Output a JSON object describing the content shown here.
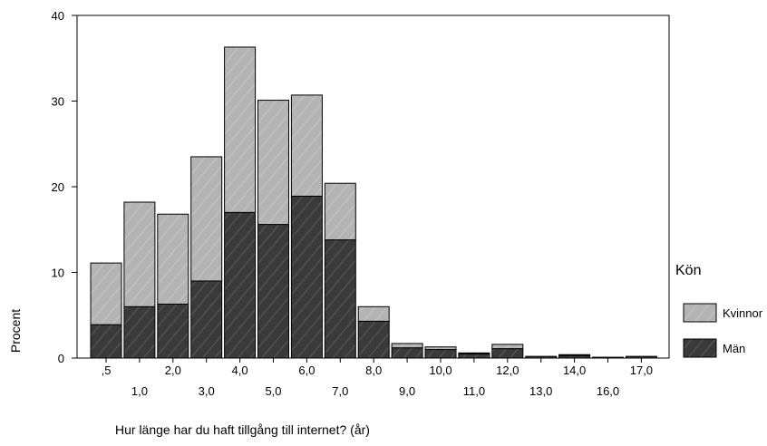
{
  "chart_data": {
    "type": "bar",
    "stacked": true,
    "categories": [
      ",5",
      "1,0",
      "2,0",
      "3,0",
      "4,0",
      "5,0",
      "6,0",
      "7,0",
      "8,0",
      "9,0",
      "10,0",
      "11,0",
      "12,0",
      "13,0",
      "14,0",
      "16,0",
      "17,0"
    ],
    "series": [
      {
        "name": "Män",
        "color": "#3a3a3a",
        "values": [
          3.9,
          6.0,
          6.3,
          9.0,
          17.0,
          15.6,
          18.9,
          13.8,
          4.3,
          1.2,
          1.0,
          0.5,
          1.1,
          0.2,
          0.3,
          0.1,
          0.2
        ]
      },
      {
        "name": "Kvinnor",
        "color": "#b4b4b4",
        "values": [
          7.2,
          12.2,
          10.5,
          14.5,
          19.3,
          14.5,
          11.8,
          6.6,
          1.7,
          0.5,
          0.3,
          0.1,
          0.5,
          0.0,
          0.1,
          0.0,
          0.0
        ]
      }
    ],
    "xlabel": "Hur länge har du haft tillgång till internet? (år)",
    "ylabel": "Procent",
    "ylim": [
      0,
      40
    ],
    "yticks": [
      0,
      10,
      20,
      30,
      40
    ],
    "legend": {
      "title": "Kön",
      "placement": "right",
      "entries": [
        "Kvinnor",
        "Män"
      ]
    },
    "grid": false
  }
}
